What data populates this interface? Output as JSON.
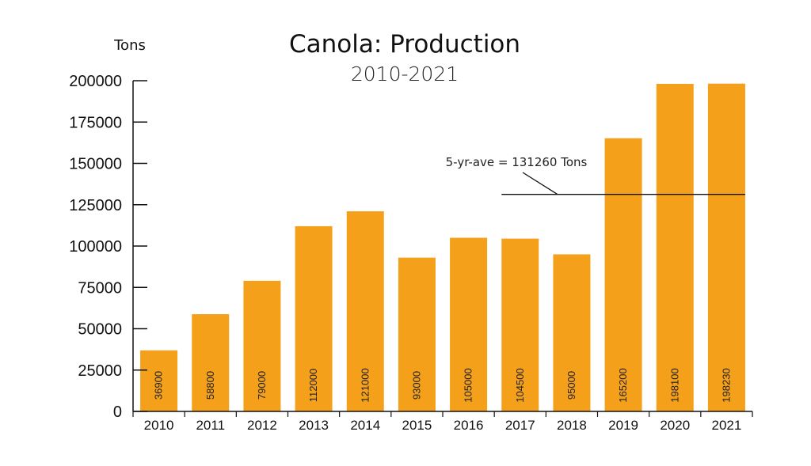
{
  "chart_data": {
    "type": "bar",
    "title": "Canola: Production",
    "subtitle": "2010-2021",
    "ylabel": "Tons",
    "xlabel": "",
    "ylim": [
      0,
      200000
    ],
    "yticks": [
      0,
      25000,
      50000,
      75000,
      100000,
      125000,
      150000,
      175000,
      200000
    ],
    "categories": [
      "2010",
      "2011",
      "2012",
      "2013",
      "2014",
      "2015",
      "2016",
      "2017",
      "2018",
      "2019",
      "2020",
      "2021"
    ],
    "values": [
      36900,
      58800,
      79000,
      112000,
      121000,
      93000,
      105000,
      104500,
      95000,
      165200,
      198100,
      198230
    ],
    "bar_color": "#F5A01A",
    "grid": false,
    "reference_line": {
      "value": 131260,
      "label": "5-yr-ave = 131260 Tons",
      "from_category": "2017",
      "to_category": "2021"
    }
  }
}
